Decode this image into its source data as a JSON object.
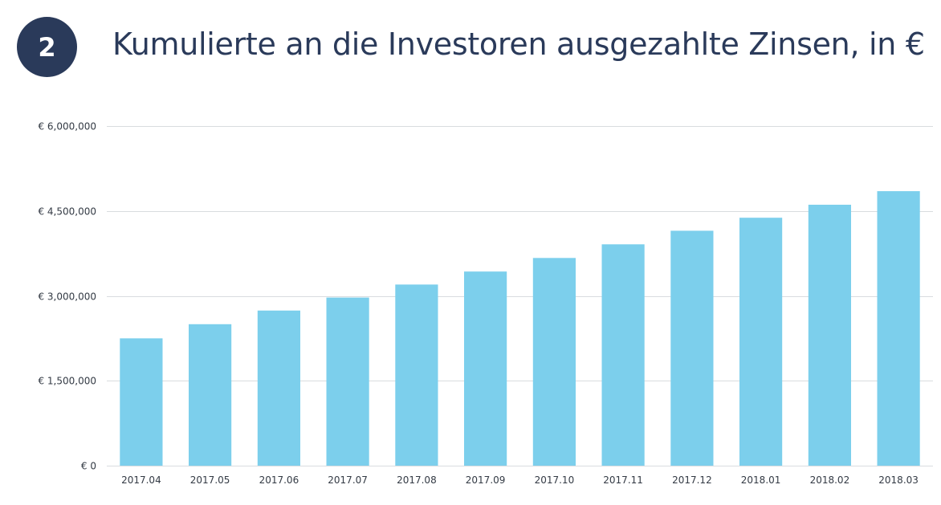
{
  "header": {
    "badge_number": "2",
    "title": "Kumulierte an die Investoren ausgezahlte Zinsen, in €"
  },
  "colors": {
    "bar": "#7ccfec",
    "badge": "#2a3a5a",
    "title": "#2a3a5a",
    "grid": "#d9dcdf",
    "axis_text": "#333a44"
  },
  "chart_data": {
    "type": "bar",
    "title": "Kumulierte an die Investoren ausgezahlte Zinsen, in €",
    "xlabel": "",
    "ylabel": "",
    "categories": [
      "2017.04",
      "2017.05",
      "2017.06",
      "2017.07",
      "2017.08",
      "2017.09",
      "2017.10",
      "2017.11",
      "2017.12",
      "2018.01",
      "2018.02",
      "2018.03"
    ],
    "values": [
      2250000,
      2500000,
      2740000,
      2970000,
      3200000,
      3430000,
      3670000,
      3910000,
      4150000,
      4380000,
      4610000,
      4850000
    ],
    "ylim": [
      0,
      6000000
    ],
    "yticks": [
      0,
      1500000,
      3000000,
      4500000,
      6000000
    ],
    "ytick_labels": [
      "€ 0",
      "€ 1,500,000",
      "€ 3,000,000",
      "€ 4,500,000",
      "€ 6,000,000"
    ],
    "grid": true,
    "legend": "none"
  }
}
